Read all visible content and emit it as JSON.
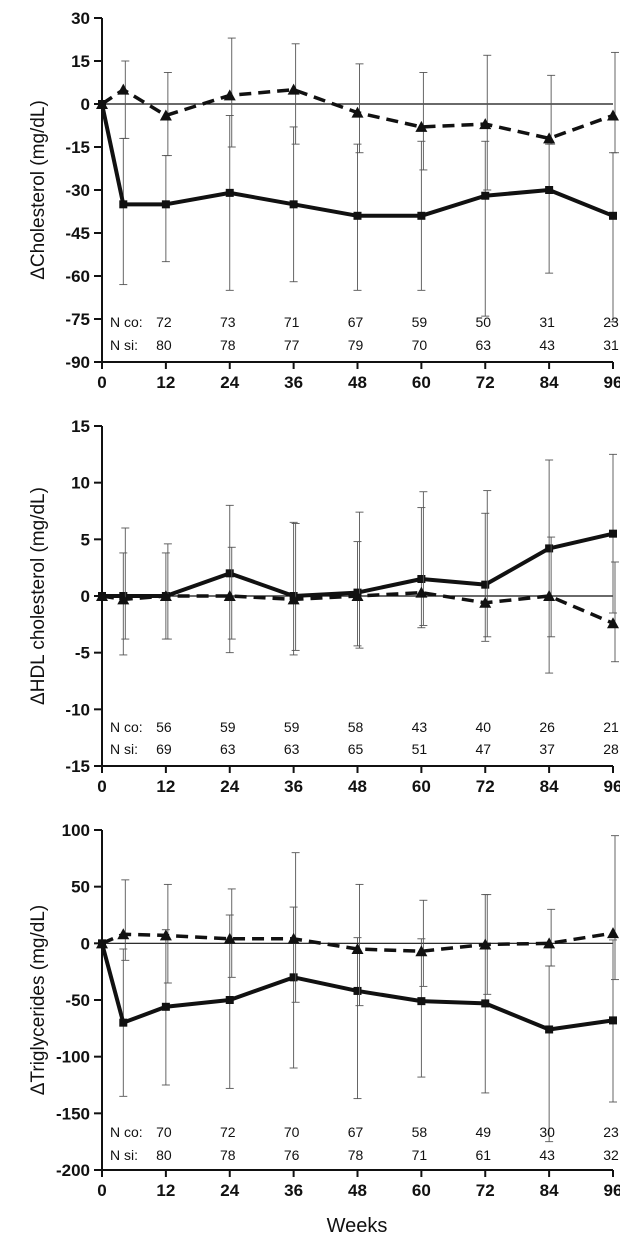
{
  "chart_data": [
    {
      "type": "line",
      "ylabel": "ΔCholesterol (mg/dL)",
      "ylim": [
        -90,
        30
      ],
      "yticks": [
        30,
        15,
        0,
        -15,
        -30,
        -45,
        -60,
        -75,
        -90
      ],
      "xticks": [
        0,
        12,
        24,
        36,
        48,
        60,
        72,
        84,
        96
      ],
      "xlim": [
        0,
        96
      ],
      "series": [
        {
          "style": "solid",
          "marker": "square",
          "x": [
            0,
            4,
            12,
            24,
            36,
            48,
            60,
            72,
            84,
            96
          ],
          "values": [
            0,
            -35,
            -35,
            -31,
            -35,
            -39,
            -39,
            -32,
            -30,
            -39
          ],
          "err_low": [
            0,
            -63,
            -55,
            -65,
            -62,
            -65,
            -65,
            -74,
            -59,
            -76
          ],
          "err_high": [
            0,
            -12,
            -18,
            -4,
            -8,
            -14,
            -13,
            -13,
            -14,
            -17
          ]
        },
        {
          "style": "dashed",
          "marker": "triangle",
          "x": [
            0,
            4,
            12,
            24,
            36,
            48,
            60,
            72,
            84,
            96
          ],
          "values": [
            0,
            5,
            -4,
            3,
            5,
            -3,
            -8,
            -7,
            -12,
            -4
          ],
          "err_low": [
            0,
            -12,
            -18,
            -15,
            -14,
            -17,
            -23,
            -30,
            -14,
            -17
          ],
          "err_high": [
            0,
            15,
            11,
            23,
            21,
            14,
            11,
            17,
            10,
            18
          ]
        }
      ],
      "n_rows": [
        {
          "label": "N co:",
          "values": [
            "72",
            "73",
            "71",
            "67",
            "59",
            "50",
            "31",
            "23"
          ]
        },
        {
          "label": "N si:",
          "values": [
            "80",
            "78",
            "77",
            "79",
            "70",
            "63",
            "43",
            "31"
          ]
        }
      ]
    },
    {
      "type": "line",
      "ylabel": "ΔHDL cholesterol (mg/dL)",
      "ylim": [
        -15,
        15
      ],
      "yticks": [
        15,
        10,
        5,
        0,
        -5,
        -10,
        -15
      ],
      "xticks": [
        0,
        12,
        24,
        36,
        48,
        60,
        72,
        84,
        96
      ],
      "xlim": [
        0,
        96
      ],
      "series": [
        {
          "style": "solid",
          "marker": "square",
          "x": [
            0,
            4,
            12,
            24,
            36,
            48,
            60,
            72,
            84,
            96
          ],
          "values": [
            0,
            0,
            0,
            2,
            0,
            0.3,
            1.5,
            1,
            4.2,
            5.5
          ],
          "err_low": [
            0,
            -5.2,
            -3.8,
            -5,
            -5.2,
            -4.4,
            -2.8,
            -4,
            -6.8,
            -1.5
          ],
          "err_high": [
            0,
            3.8,
            3.8,
            8,
            6.5,
            4.8,
            7.8,
            7.3,
            12,
            12.5
          ]
        },
        {
          "style": "dashed",
          "marker": "triangle",
          "x": [
            0,
            4,
            12,
            24,
            36,
            48,
            60,
            72,
            84,
            96
          ],
          "values": [
            0,
            -0.3,
            0,
            0,
            -0.3,
            0,
            0.3,
            -0.6,
            0,
            -2.4
          ],
          "err_low": [
            0,
            -3.8,
            -3.8,
            -3.8,
            -4.8,
            -4.6,
            -2.6,
            -3.6,
            -3.6,
            -5.8
          ],
          "err_high": [
            0,
            6,
            4.6,
            4.3,
            6.4,
            7.4,
            9.2,
            9.3,
            5.2,
            3
          ]
        }
      ],
      "n_rows": [
        {
          "label": "N co:",
          "values": [
            "56",
            "59",
            "59",
            "58",
            "43",
            "40",
            "26",
            "21"
          ]
        },
        {
          "label": "N si:",
          "values": [
            "69",
            "63",
            "63",
            "65",
            "51",
            "47",
            "37",
            "28"
          ]
        }
      ]
    },
    {
      "type": "line",
      "ylabel": "ΔTriglycerides (mg/dL)",
      "ylim": [
        -200,
        100
      ],
      "yticks": [
        100,
        50,
        0,
        -50,
        -100,
        -150,
        -200
      ],
      "xticks": [
        0,
        12,
        24,
        36,
        48,
        60,
        72,
        84,
        96
      ],
      "xlim": [
        0,
        96
      ],
      "series": [
        {
          "style": "solid",
          "marker": "square",
          "x": [
            0,
            4,
            12,
            24,
            36,
            48,
            60,
            72,
            84,
            96
          ],
          "values": [
            0,
            -70,
            -56,
            -50,
            -30,
            -42,
            -51,
            -53,
            -76,
            -68
          ],
          "err_low": [
            0,
            -135,
            -125,
            -128,
            -110,
            -137,
            -118,
            -132,
            -175,
            -140
          ],
          "err_high": [
            0,
            -5,
            12,
            25,
            32,
            5,
            4,
            43,
            -20,
            3
          ]
        },
        {
          "style": "dashed",
          "marker": "triangle",
          "x": [
            0,
            4,
            12,
            24,
            36,
            48,
            60,
            72,
            84,
            96
          ],
          "values": [
            0,
            8,
            7,
            4,
            4,
            -5,
            -7,
            -1,
            0,
            9
          ],
          "err_low": [
            0,
            -15,
            -35,
            -30,
            -52,
            -55,
            -38,
            -45,
            -20,
            -32
          ],
          "err_high": [
            0,
            56,
            52,
            48,
            80,
            52,
            38,
            43,
            30,
            95
          ]
        }
      ],
      "n_rows": [
        {
          "label": "N co:",
          "values": [
            "70",
            "72",
            "70",
            "67",
            "58",
            "49",
            "30",
            "23"
          ]
        },
        {
          "label": "N si:",
          "values": [
            "80",
            "78",
            "76",
            "78",
            "71",
            "61",
            "43",
            "32"
          ]
        }
      ]
    }
  ],
  "shared_xlabel": "Weeks"
}
